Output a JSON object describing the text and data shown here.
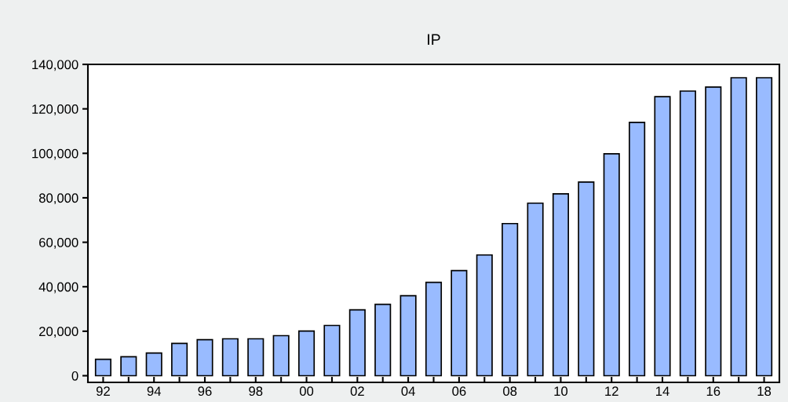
{
  "chart_data": {
    "type": "bar",
    "title": "IP",
    "categories": [
      "92",
      null,
      "94",
      null,
      "96",
      null,
      "98",
      null,
      "00",
      null,
      "02",
      null,
      "04",
      null,
      "06",
      null,
      "08",
      null,
      "10",
      null,
      "12",
      null,
      "14",
      null,
      "16",
      null,
      "18"
    ],
    "values": [
      7400,
      8500,
      10200,
      14500,
      16200,
      16600,
      16600,
      18000,
      20100,
      22600,
      29600,
      32100,
      36000,
      42000,
      47300,
      54300,
      68400,
      77600,
      81800,
      87100,
      99800,
      113900,
      125500,
      128000,
      129800,
      134000,
      134000
    ],
    "color": "#99bbff",
    "ylim": [
      -3000,
      140000
    ],
    "yticks": [
      {
        "value": 0,
        "label": "0"
      },
      {
        "value": 20000,
        "label": "20,000"
      },
      {
        "value": 40000,
        "label": "40,000"
      },
      {
        "value": 60000,
        "label": "60,000"
      },
      {
        "value": 80000,
        "label": "80,000"
      },
      {
        "value": 100000,
        "label": "100,000"
      },
      {
        "value": 120000,
        "label": "120,000"
      },
      {
        "value": 140000,
        "label": "140,000"
      }
    ],
    "grid": false
  }
}
